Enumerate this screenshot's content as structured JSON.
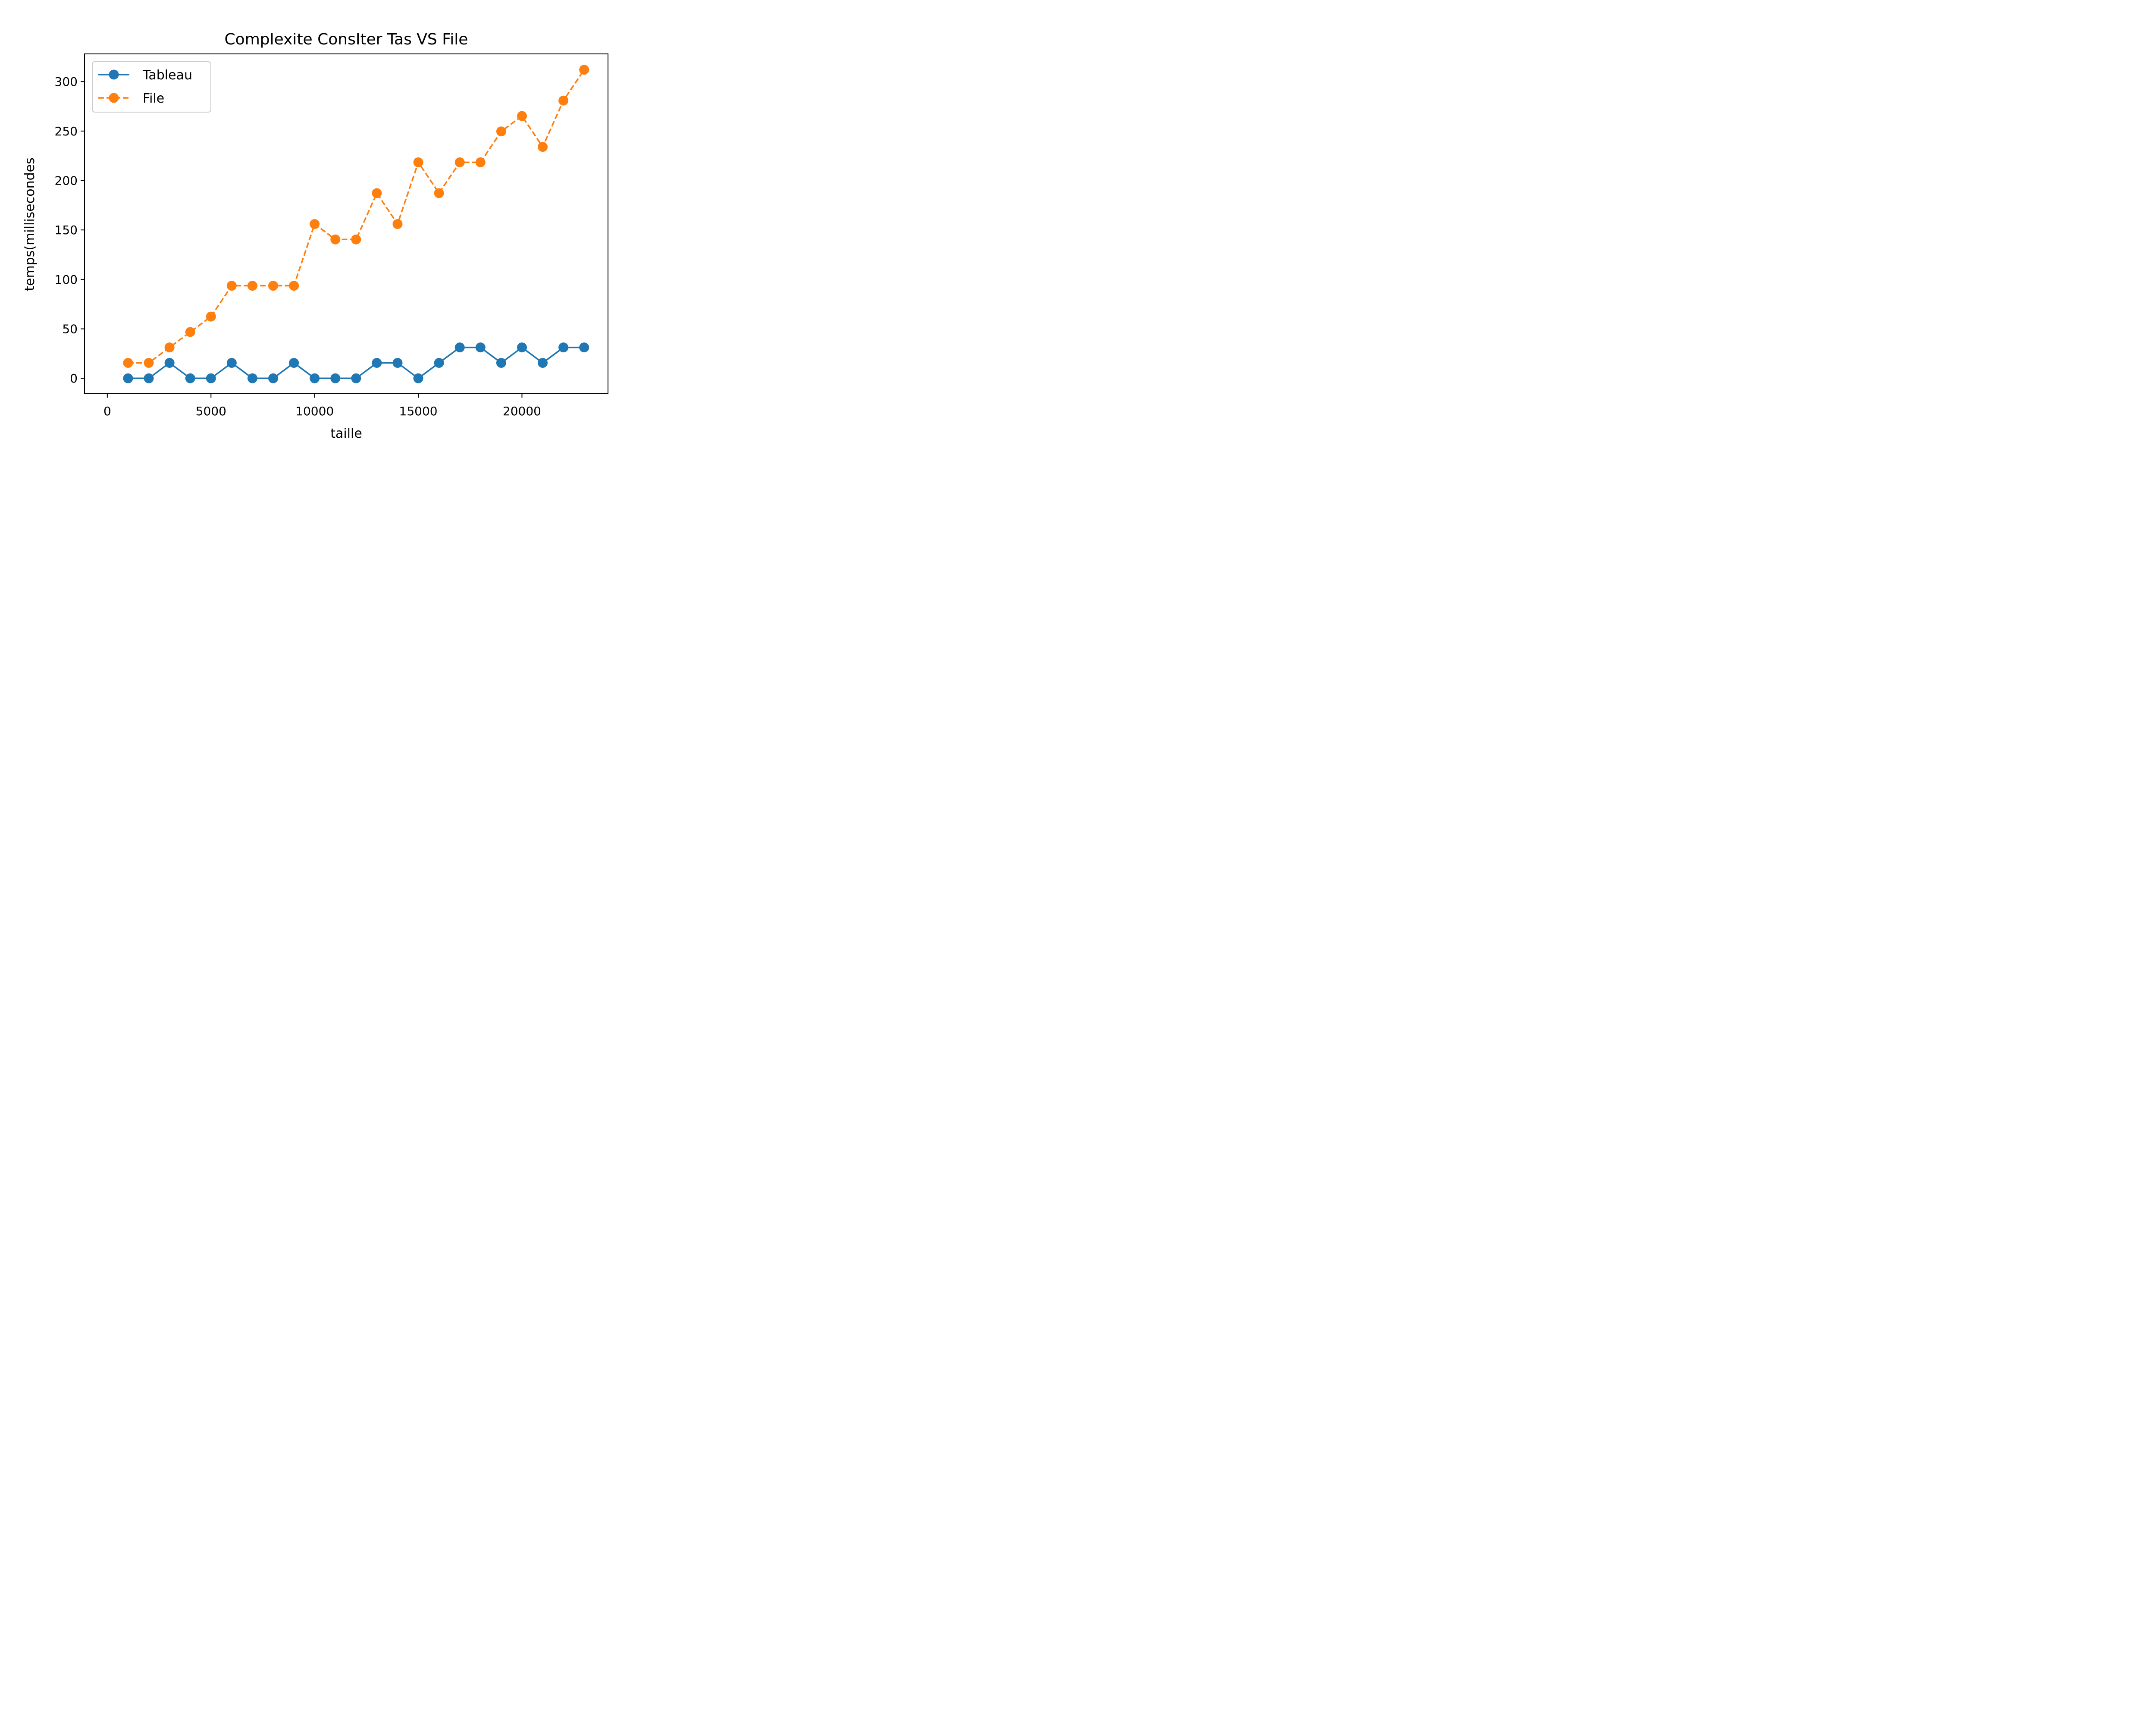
{
  "chart_data": {
    "type": "line",
    "title": "Complexite ConsIter Tas VS File",
    "xlabel": "taille",
    "ylabel": "temps(millisecondes",
    "xlim": [
      -1100,
      24150
    ],
    "ylim": [
      -15.6,
      328
    ],
    "xticks": [
      0,
      5000,
      10000,
      15000,
      20000
    ],
    "yticks": [
      0,
      50,
      100,
      150,
      200,
      250,
      300
    ],
    "grid": false,
    "legend_position": "top-left",
    "x": [
      1000,
      2000,
      3000,
      4000,
      5000,
      6000,
      7000,
      8000,
      9000,
      10000,
      11000,
      12000,
      13000,
      14000,
      15000,
      16000,
      17000,
      18000,
      19000,
      20000,
      21000,
      22000,
      23000
    ],
    "series": [
      {
        "name": "Tableau",
        "color": "#1f77b4",
        "linestyle": "solid",
        "marker": "circle",
        "values": [
          0,
          0,
          15.6,
          0,
          0,
          15.6,
          0,
          0,
          15.6,
          0,
          0,
          0,
          15.6,
          15.6,
          0,
          15.6,
          31.2,
          31.2,
          15.6,
          31.2,
          15.6,
          31.2,
          31.2
        ]
      },
      {
        "name": "File",
        "color": "#ff7f0e",
        "linestyle": "dashed",
        "marker": "circle",
        "values": [
          15.6,
          15.6,
          31.2,
          46.8,
          62.4,
          93.6,
          93.6,
          93.6,
          93.6,
          156,
          140.4,
          140.4,
          187.2,
          156,
          218.4,
          187.2,
          218.4,
          218.4,
          249.6,
          265.2,
          234,
          280.8,
          312
        ]
      }
    ]
  }
}
